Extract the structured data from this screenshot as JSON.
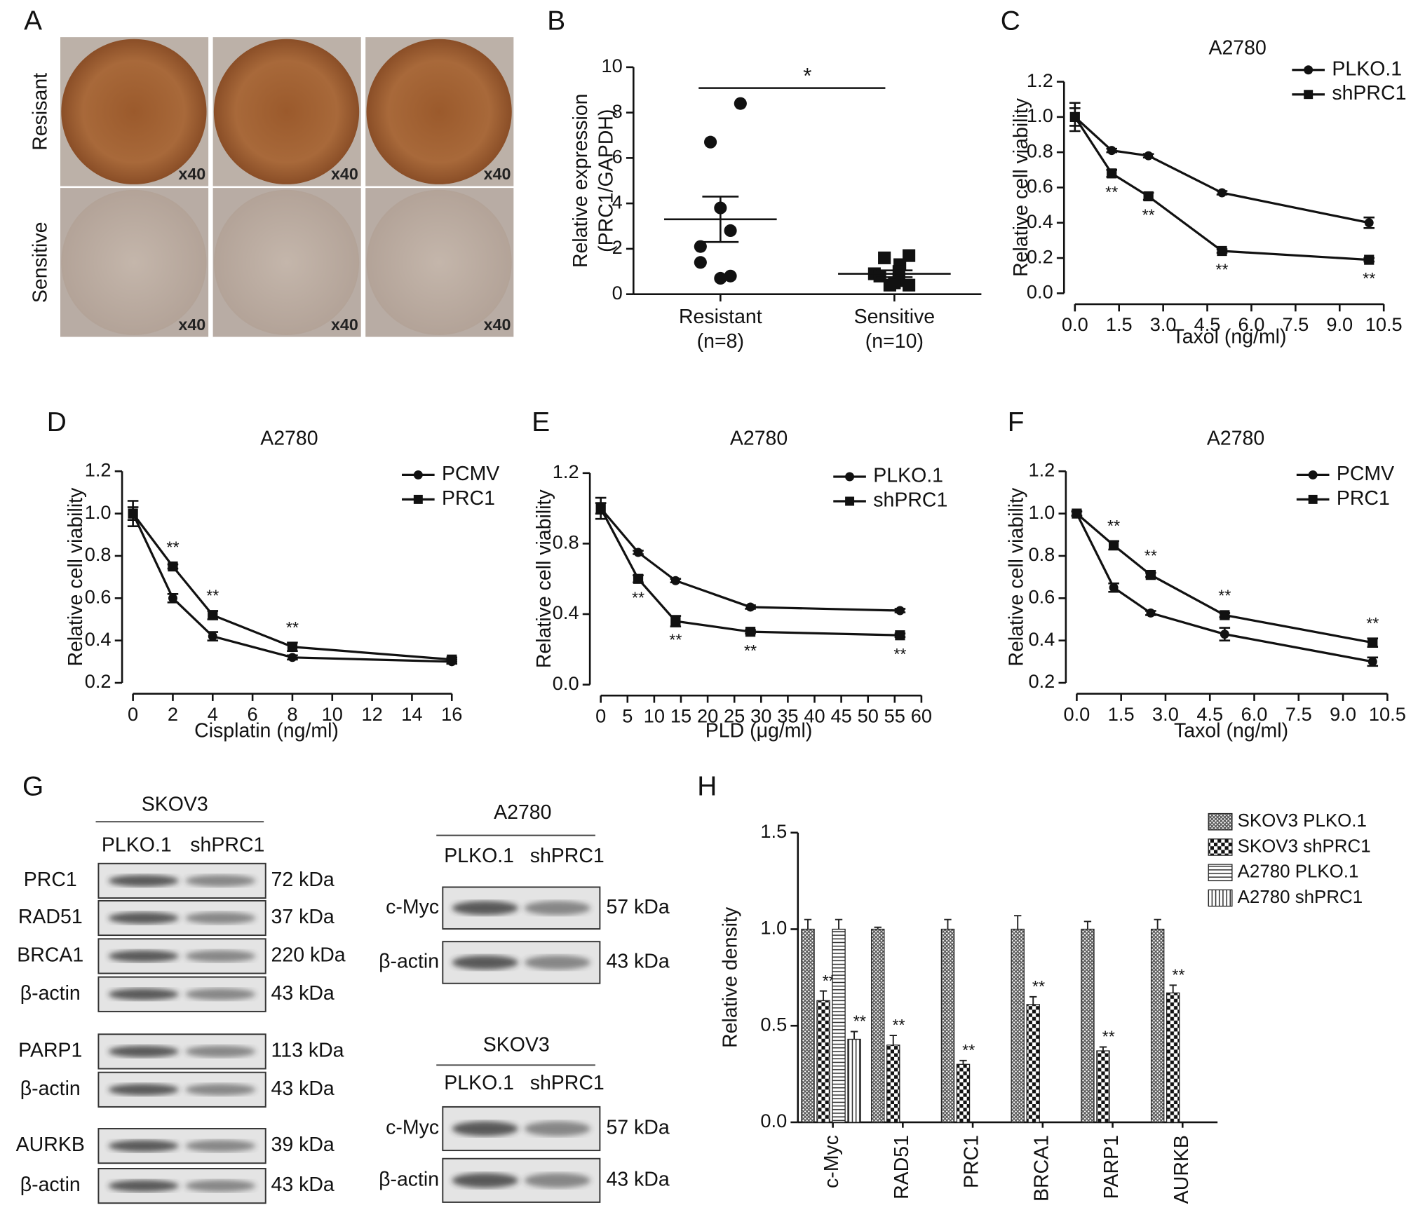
{
  "panel_a": {
    "label": "A",
    "rows": [
      "Resisant",
      "Sensitive"
    ],
    "magnification": "x40"
  },
  "chart_data": [
    {
      "type": "scatter",
      "label": "B",
      "ylabel": [
        "Relative expression",
        "(PRC1/GAPDH)"
      ],
      "ylim": [
        0,
        10
      ],
      "yticks": [
        0,
        2,
        4,
        6,
        8,
        10
      ],
      "categories": [
        "Resistant",
        "Sensitive"
      ],
      "category_notes": [
        "(n=8)",
        "(n=10)"
      ],
      "groups": [
        {
          "marker": "circle",
          "values": [
            8.4,
            6.7,
            3.8,
            2.8,
            2.1,
            1.4,
            0.8,
            0.7
          ],
          "mean": 3.3,
          "sem": 1.0
        },
        {
          "marker": "square",
          "values": [
            1.7,
            1.6,
            1.3,
            1.0,
            0.9,
            0.8,
            0.6,
            0.5,
            0.4,
            0.4
          ],
          "mean": 0.9,
          "sem": 0.15
        }
      ],
      "significance": "*",
      "color": "#111111"
    },
    {
      "type": "line",
      "label": "C",
      "title": "A2780",
      "xlabel": "Taxol (ng/ml)",
      "ylabel": "Relative cell viability",
      "x": [
        0,
        1.25,
        2.5,
        5,
        10
      ],
      "xlim": [
        0,
        10.5
      ],
      "xticks": [
        {
          "value": 0,
          "label": "0.0"
        },
        1.5,
        {
          "value": 3,
          "label": "3.0"
        },
        4.5,
        {
          "value": 6,
          "label": "6.0"
        },
        7.5,
        {
          "value": 9,
          "label": "9.0"
        },
        10.5
      ],
      "ylim": [
        0,
        1.2
      ],
      "yticks": [
        {
          "value": 0,
          "label": "0.0"
        },
        0.2,
        0.4,
        0.6,
        0.8,
        {
          "value": 1,
          "label": "1.0"
        },
        1.2
      ],
      "annotation_position": "below",
      "series": [
        {
          "name": "PLKO.1",
          "marker": "circle",
          "color": "#111111",
          "values": [
            1.0,
            0.81,
            0.78,
            0.57,
            0.4
          ],
          "errors": [
            0.05,
            0.01,
            0.01,
            0.01,
            0.03
          ]
        },
        {
          "name": "shPRC1",
          "marker": "square",
          "color": "#111111",
          "values": [
            1.0,
            0.68,
            0.55,
            0.24,
            0.19
          ],
          "errors": [
            0.08,
            0.02,
            0.02,
            0.01,
            0.01
          ],
          "annotations": [
            null,
            "**",
            "**",
            "**",
            "**"
          ]
        }
      ]
    },
    {
      "type": "line",
      "label": "D",
      "title": "A2780",
      "xlabel": "Cisplatin (ng/ml)",
      "ylabel": "Relative cell viability",
      "x": [
        0,
        2,
        4,
        8,
        16
      ],
      "xlim": [
        0,
        16
      ],
      "xticks": [
        0,
        2,
        4,
        6,
        8,
        10,
        12,
        14,
        16
      ],
      "ylim": [
        0.2,
        1.2
      ],
      "yticks": [
        0.2,
        0.4,
        0.6,
        0.8,
        {
          "value": 1,
          "label": "1.0"
        },
        1.2
      ],
      "annotation_position": "above",
      "series": [
        {
          "name": "PCMV",
          "marker": "circle",
          "color": "#111111",
          "values": [
            1.0,
            0.6,
            0.42,
            0.32,
            0.3
          ],
          "errors": [
            0.03,
            0.02,
            0.02,
            0.01,
            0.01
          ]
        },
        {
          "name": "PRC1",
          "marker": "square",
          "color": "#111111",
          "values": [
            1.0,
            0.75,
            0.52,
            0.37,
            0.31
          ],
          "errors": [
            0.06,
            0.01,
            0.02,
            0.02,
            0.01
          ],
          "annotations": [
            null,
            "**",
            "**",
            "**",
            null
          ]
        }
      ]
    },
    {
      "type": "line",
      "label": "E",
      "title": "A2780",
      "xlabel": "PLD (μg/ml)",
      "ylabel": "Relative cell viability",
      "x": [
        0,
        7,
        14,
        28,
        56
      ],
      "xlim": [
        0,
        60
      ],
      "xticks": [
        0,
        5,
        10,
        15,
        20,
        25,
        30,
        35,
        40,
        45,
        50,
        55,
        60
      ],
      "ylim": [
        0,
        1.2
      ],
      "yticks": [
        {
          "value": 0,
          "label": "0.0"
        },
        0.4,
        0.8,
        1.2
      ],
      "annotation_position": "below",
      "series": [
        {
          "name": "PLKO.1",
          "marker": "circle",
          "color": "#111111",
          "values": [
            1.0,
            0.75,
            0.59,
            0.44,
            0.42
          ],
          "errors": [
            0.03,
            0.01,
            0.01,
            0.01,
            0.01
          ]
        },
        {
          "name": "shPRC1",
          "marker": "square",
          "color": "#111111",
          "values": [
            1.0,
            0.6,
            0.36,
            0.3,
            0.28
          ],
          "errors": [
            0.06,
            0.02,
            0.03,
            0.01,
            0.01
          ],
          "annotations": [
            null,
            "**",
            "**",
            "**",
            "**"
          ]
        }
      ]
    },
    {
      "type": "line",
      "label": "F",
      "title": "A2780",
      "xlabel": "Taxol (ng/ml)",
      "ylabel": "Relative cell viability",
      "x": [
        0,
        1.25,
        2.5,
        5,
        10
      ],
      "xlim": [
        0,
        10.5
      ],
      "xticks": [
        {
          "value": 0,
          "label": "0.0"
        },
        1.5,
        {
          "value": 3,
          "label": "3.0"
        },
        4.5,
        {
          "value": 6,
          "label": "6.0"
        },
        7.5,
        {
          "value": 9,
          "label": "9.0"
        },
        10.5
      ],
      "ylim": [
        0.2,
        1.2
      ],
      "yticks": [
        0.2,
        0.4,
        0.6,
        0.8,
        {
          "value": 1,
          "label": "1.0"
        },
        1.2
      ],
      "annotation_position": "above",
      "series": [
        {
          "name": "PCMV",
          "marker": "circle",
          "color": "#111111",
          "values": [
            1.0,
            0.65,
            0.53,
            0.43,
            0.3
          ],
          "errors": [
            0.01,
            0.02,
            0.01,
            0.03,
            0.02
          ]
        },
        {
          "name": "PRC1",
          "marker": "square",
          "color": "#111111",
          "values": [
            1.0,
            0.85,
            0.71,
            0.52,
            0.39
          ],
          "errors": [
            0.01,
            0.02,
            0.01,
            0.01,
            0.02
          ],
          "annotations": [
            null,
            "**",
            "**",
            "**",
            "**"
          ]
        }
      ]
    },
    {
      "type": "bar",
      "label": "H",
      "ylabel": "Relative density",
      "categories": [
        "c-Myc",
        "RAD51",
        "PRC1",
        "BRCA1",
        "PARP1",
        "AURKB"
      ],
      "ylim": [
        0,
        1.5
      ],
      "yticks": [
        {
          "value": 0,
          "label": "0.0"
        },
        0.5,
        {
          "value": 1,
          "label": "1.0"
        },
        1.5
      ],
      "series": [
        {
          "name": "SKOV3 PLKO.1",
          "pattern": "crosshatch",
          "values": [
            1,
            1,
            1,
            1,
            1,
            1
          ],
          "errors": [
            0.05,
            0.01,
            0.05,
            0.07,
            0.04,
            0.05
          ]
        },
        {
          "name": "SKOV3 shPRC1",
          "pattern": "checker",
          "values": [
            0.63,
            0.4,
            0.3,
            0.61,
            0.37,
            0.67
          ],
          "errors": [
            0.05,
            0.05,
            0.02,
            0.04,
            0.02,
            0.04
          ],
          "annotations": [
            "**",
            "**",
            "**",
            "**",
            "**",
            "**"
          ]
        },
        {
          "name": "A2780 PLKO.1",
          "pattern": "horizontal",
          "values": [
            1,
            null,
            null,
            null,
            null,
            null
          ],
          "errors": [
            0.05,
            null,
            null,
            null,
            null,
            null
          ]
        },
        {
          "name": "A2780 shPRC1",
          "pattern": "vertical",
          "values": [
            0.43,
            null,
            null,
            null,
            null,
            null
          ],
          "errors": [
            0.04,
            null,
            null,
            null,
            null,
            null
          ],
          "annotations": [
            "**",
            null,
            null,
            null,
            null,
            null
          ]
        }
      ]
    }
  ],
  "panel_g": {
    "label": "G",
    "blots": [
      {
        "title": "SKOV3",
        "lanes": [
          "PLKO.1",
          "shPRC1"
        ],
        "rows": [
          {
            "protein": "PRC1",
            "size": "72 kDa"
          },
          {
            "protein": "RAD51",
            "size": "37 kDa"
          },
          {
            "protein": "BRCA1",
            "size": "220 kDa"
          },
          {
            "protein": "β-actin",
            "size": "43 kDa"
          },
          {
            "protein": "PARP1",
            "size": "113 kDa"
          },
          {
            "protein": "β-actin",
            "size": "43 kDa"
          },
          {
            "protein": "AURKB",
            "size": "39 kDa"
          },
          {
            "protein": "β-actin",
            "size": "43 kDa"
          }
        ]
      },
      {
        "title": "A2780",
        "lanes": [
          "PLKO.1",
          "shPRC1"
        ],
        "rows": [
          {
            "protein": "c-Myc",
            "size": "57 kDa"
          },
          {
            "protein": "β-actin",
            "size": "43 kDa"
          }
        ]
      },
      {
        "title": "SKOV3",
        "lanes": [
          "PLKO.1",
          "shPRC1"
        ],
        "rows": [
          {
            "protein": "c-Myc",
            "size": "57 kDa"
          },
          {
            "protein": "β-actin",
            "size": "43 kDa"
          }
        ]
      }
    ]
  }
}
